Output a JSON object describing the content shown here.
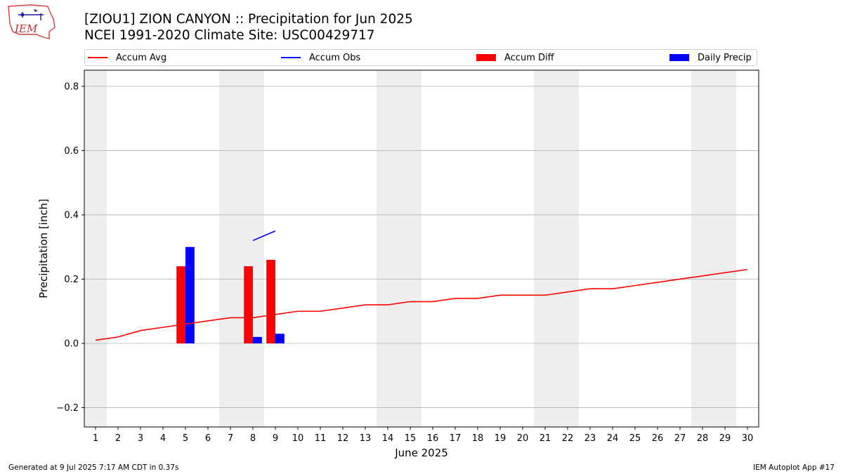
{
  "header": {
    "logo_text": "IEM",
    "title": "[ZIOU1] ZION CANYON :: Precipitation for Jun 2025",
    "subtitle": "NCEI 1991-2020 Climate Site: USC00429717"
  },
  "footer": {
    "generated": "Generated at 9 Jul 2025 7:17 AM CDT in 0.37s",
    "app": "IEM Autoplot App #17"
  },
  "colors": {
    "avg": "#ff0000",
    "obs": "#0000ff",
    "diff": "#ff0000",
    "daily": "#0000ff",
    "weekend": "#eeeeee",
    "grid": "#b0b0b0"
  },
  "chart_data": {
    "type": "bar",
    "xlabel": "June 2025",
    "ylabel": "Precipitation [inch]",
    "xlim": [
      0.5,
      30.5
    ],
    "ylim": [
      -0.26,
      0.85
    ],
    "yticks": [
      -0.2,
      0.0,
      0.2,
      0.4,
      0.6,
      0.8
    ],
    "ytick_labels": [
      "−0.2",
      "0.0",
      "0.2",
      "0.4",
      "0.6",
      "0.8"
    ],
    "days": [
      1,
      2,
      3,
      4,
      5,
      6,
      7,
      8,
      9,
      10,
      11,
      12,
      13,
      14,
      15,
      16,
      17,
      18,
      19,
      20,
      21,
      22,
      23,
      24,
      25,
      26,
      27,
      28,
      29,
      30
    ],
    "weekend_days": [
      1,
      7,
      8,
      14,
      15,
      21,
      22,
      28,
      29
    ],
    "grid": true,
    "legend_position": "top",
    "legend": [
      "Accum Avg",
      "Accum Obs",
      "Accum Diff",
      "Daily Precip"
    ],
    "series": [
      {
        "name": "Accum Avg",
        "kind": "line",
        "x": [
          1,
          2,
          3,
          4,
          5,
          6,
          7,
          8,
          9,
          10,
          11,
          12,
          13,
          14,
          15,
          16,
          17,
          18,
          19,
          20,
          21,
          22,
          23,
          24,
          25,
          26,
          27,
          28,
          29,
          30
        ],
        "values": [
          0.01,
          0.02,
          0.04,
          0.05,
          0.06,
          0.07,
          0.08,
          0.08,
          0.09,
          0.1,
          0.1,
          0.11,
          0.12,
          0.12,
          0.13,
          0.13,
          0.14,
          0.14,
          0.15,
          0.15,
          0.15,
          0.16,
          0.17,
          0.17,
          0.18,
          0.19,
          0.2,
          0.21,
          0.22,
          0.23
        ]
      },
      {
        "name": "Accum Obs",
        "kind": "line",
        "x": [
          8,
          9
        ],
        "values": [
          0.32,
          0.35
        ]
      },
      {
        "name": "Accum Diff",
        "kind": "bar",
        "x": [
          5,
          8,
          9
        ],
        "values": [
          0.24,
          0.24,
          0.26
        ]
      },
      {
        "name": "Daily Precip",
        "kind": "bar",
        "x": [
          5,
          8,
          9
        ],
        "values": [
          0.3,
          0.02,
          0.03
        ]
      }
    ]
  }
}
